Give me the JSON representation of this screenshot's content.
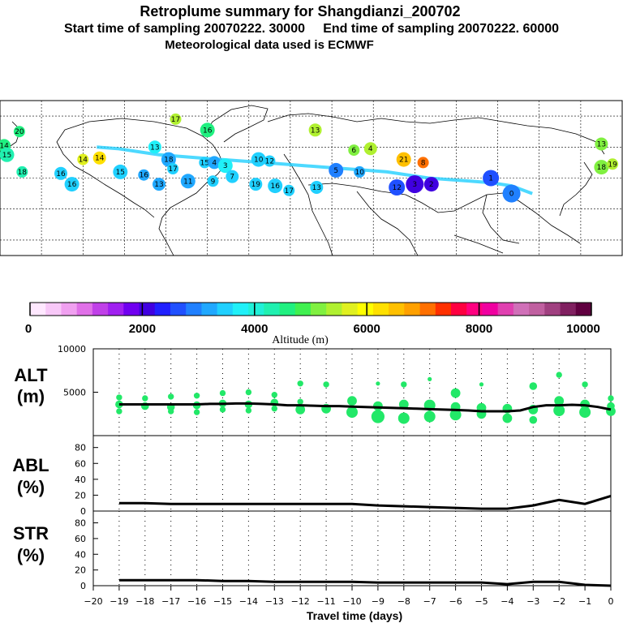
{
  "titles": {
    "line1": "Retroplume summary for Shangdianzi_200702",
    "line2": "Start time of sampling 20070222. 30000     End time of sampling 20070222. 60000",
    "line3": "Meteorological data used is ECMWF"
  },
  "colorbar": {
    "label": "Altitude (m)",
    "ticks": [
      "0",
      "2000",
      "4000",
      "6000",
      "8000",
      "10000"
    ],
    "colors": [
      "#ffe8ff",
      "#f8c8f8",
      "#f0a0f0",
      "#e070e8",
      "#c040e8",
      "#a020f0",
      "#7000f0",
      "#4000e0",
      "#2020ff",
      "#2050ff",
      "#2080ff",
      "#20a8ff",
      "#20d0ff",
      "#20f0f8",
      "#20f0d8",
      "#20f0b0",
      "#20f080",
      "#40f050",
      "#80f040",
      "#b0f030",
      "#e0f020",
      "#ffff00",
      "#ffe000",
      "#ffc000",
      "#ffa000",
      "#ff7000",
      "#ff3000",
      "#ff0040",
      "#ff0080",
      "#f000a0",
      "#e040b0",
      "#d070b8",
      "#c060a0",
      "#a04080",
      "#802060",
      "#600040"
    ]
  },
  "chart_data": [
    {
      "type": "map",
      "title": "Retroplume cluster positions",
      "points": [
        {
          "label": "20",
          "lon": -166,
          "lat": 70,
          "alt": 4500
        },
        {
          "label": "14",
          "lon": -177,
          "lat": 61,
          "alt": 4600
        },
        {
          "label": "15",
          "lon": -175,
          "lat": 55,
          "alt": 4400
        },
        {
          "label": "18",
          "lon": -164,
          "lat": 44,
          "alt": 4300
        },
        {
          "label": "16",
          "lon": -136,
          "lat": 43,
          "alt": 3400
        },
        {
          "label": "16",
          "lon": -128,
          "lat": 36,
          "alt": 3500
        },
        {
          "label": "14",
          "lon": -120,
          "lat": 52,
          "alt": 5800
        },
        {
          "label": "14",
          "lon": -108,
          "lat": 53,
          "alt": 6200
        },
        {
          "label": "15",
          "lon": -93,
          "lat": 44,
          "alt": 3400
        },
        {
          "label": "16",
          "lon": -76,
          "lat": 42,
          "alt": 3300
        },
        {
          "label": "13",
          "lon": -68,
          "lat": 60,
          "alt": 3700
        },
        {
          "label": "18",
          "lon": -58,
          "lat": 52,
          "alt": 3200
        },
        {
          "label": "17",
          "lon": -55,
          "lat": 46,
          "alt": 3400
        },
        {
          "label": "13",
          "lon": -65,
          "lat": 36,
          "alt": 3100
        },
        {
          "label": "11",
          "lon": -44,
          "lat": 38,
          "alt": 3300
        },
        {
          "label": "15",
          "lon": -32,
          "lat": 50,
          "alt": 3600
        },
        {
          "label": "4",
          "lon": -25,
          "lat": 50,
          "alt": 3300
        },
        {
          "label": "3",
          "lon": -17,
          "lat": 48,
          "alt": 3700
        },
        {
          "label": "9",
          "lon": -26,
          "lat": 38,
          "alt": 3500
        },
        {
          "label": "7",
          "lon": -12,
          "lat": 41,
          "alt": 3600
        },
        {
          "label": "10",
          "lon": 7,
          "lat": 52,
          "alt": 3500
        },
        {
          "label": "12",
          "lon": 15,
          "lat": 51,
          "alt": 3600
        },
        {
          "label": "19",
          "lon": 5,
          "lat": 36,
          "alt": 3500
        },
        {
          "label": "16",
          "lon": 19,
          "lat": 35,
          "alt": 3500
        },
        {
          "label": "17",
          "lon": 29,
          "lat": 32,
          "alt": 3400
        },
        {
          "label": "13",
          "lon": 49,
          "lat": 34,
          "alt": 3600
        },
        {
          "label": "5",
          "lon": 63,
          "lat": 45,
          "alt": 3000
        },
        {
          "label": "10",
          "lon": 80,
          "lat": 44,
          "alt": 3200
        },
        {
          "label": "12",
          "lon": 107,
          "lat": 34,
          "alt": 2500
        },
        {
          "label": "3",
          "lon": 120,
          "lat": 36,
          "alt": 2000
        },
        {
          "label": "2",
          "lon": 132,
          "lat": 36,
          "alt": 2200
        },
        {
          "label": "1",
          "lon": 175,
          "lat": 40,
          "alt": 2700
        },
        {
          "label": "0",
          "lon": 190,
          "lat": 30,
          "alt": 2800
        },
        {
          "label": "6",
          "lon": 76,
          "lat": 58,
          "alt": 5200
        },
        {
          "label": "4",
          "lon": 88,
          "lat": 59,
          "alt": 5500
        },
        {
          "label": "21",
          "lon": 112,
          "lat": 52,
          "alt": 6500
        },
        {
          "label": "8",
          "lon": 126,
          "lat": 50,
          "alt": 7200
        },
        {
          "label": "13",
          "lon": 48,
          "lat": 71,
          "alt": 5500
        },
        {
          "label": "16",
          "lon": -30,
          "lat": 71,
          "alt": 4500
        },
        {
          "label": "17",
          "lon": -53,
          "lat": 78,
          "alt": 5300
        },
        {
          "label": "13",
          "lon": 255,
          "lat": 62,
          "alt": 5000
        },
        {
          "label": "18",
          "lon": 255,
          "lat": 47,
          "alt": 5200
        },
        {
          "label": "19",
          "lon": 263,
          "lat": 49,
          "alt": 5500
        }
      ]
    },
    {
      "type": "scatter+line",
      "ylabel_line1": "ALT",
      "ylabel_line2": "(m)",
      "ylim": [
        0,
        10000
      ],
      "yticks": [
        "5000",
        "10000"
      ],
      "xlim": [
        -20,
        0
      ],
      "x": [
        -19,
        -18.5,
        -18,
        -17.5,
        -17,
        -16.5,
        -16,
        -15.5,
        -15,
        -14.5,
        -14,
        -13.5,
        -13,
        -12.5,
        -12,
        -11.5,
        -11,
        -10.5,
        -10,
        -9.5,
        -9,
        -8.5,
        -8,
        -7.5,
        -7,
        -6.5,
        -6,
        -5.5,
        -5,
        -4.5,
        -4,
        -3.5,
        -3,
        -2.5,
        -2,
        -1.5,
        -1,
        -0.5,
        0
      ],
      "median": [
        3600,
        3600,
        3600,
        3600,
        3600,
        3600,
        3600,
        3650,
        3650,
        3700,
        3700,
        3650,
        3600,
        3500,
        3500,
        3450,
        3400,
        3400,
        3350,
        3300,
        3250,
        3200,
        3150,
        3100,
        3050,
        3000,
        2950,
        2900,
        2800,
        2800,
        2800,
        2900,
        3300,
        3500,
        3500,
        3550,
        3500,
        3300,
        3000
      ],
      "clusters": [
        [
          -19,
          3600,
          3
        ],
        [
          -19,
          2800,
          2
        ],
        [
          -19,
          4400,
          2
        ],
        [
          -18,
          3400,
          3
        ],
        [
          -18,
          4300,
          2
        ],
        [
          -17,
          3300,
          3
        ],
        [
          -17,
          4500,
          2
        ],
        [
          -17,
          2800,
          2
        ],
        [
          -16,
          3500,
          3
        ],
        [
          -16,
          4600,
          2
        ],
        [
          -16,
          2700,
          2
        ],
        [
          -15,
          3700,
          3
        ],
        [
          -15,
          4900,
          2
        ],
        [
          -15,
          3000,
          2
        ],
        [
          -14,
          3600,
          3
        ],
        [
          -14,
          5000,
          2
        ],
        [
          -14,
          2900,
          2
        ],
        [
          -13,
          3800,
          3
        ],
        [
          -13,
          4700,
          2
        ],
        [
          -13,
          3100,
          2
        ],
        [
          -12,
          3000,
          4
        ],
        [
          -12,
          6000,
          2
        ],
        [
          -12,
          3900,
          2
        ],
        [
          -11,
          3100,
          4
        ],
        [
          -11,
          5900,
          2
        ],
        [
          -10,
          2700,
          5
        ],
        [
          -10,
          4000,
          4
        ],
        [
          -9,
          2200,
          6
        ],
        [
          -9,
          3400,
          4
        ],
        [
          -9,
          6000,
          1
        ],
        [
          -8,
          2000,
          5
        ],
        [
          -8,
          3600,
          4
        ],
        [
          -8,
          5900,
          2
        ],
        [
          -7,
          2200,
          5
        ],
        [
          -7,
          3500,
          5
        ],
        [
          -7,
          6500,
          1
        ],
        [
          -6,
          2400,
          5
        ],
        [
          -6,
          4900,
          4
        ],
        [
          -6,
          3300,
          4
        ],
        [
          -5,
          2500,
          4
        ],
        [
          -5,
          3200,
          4
        ],
        [
          -5,
          5900,
          1
        ],
        [
          -4,
          2000,
          4
        ],
        [
          -4,
          3100,
          4
        ],
        [
          -3,
          1800,
          3
        ],
        [
          -3,
          3000,
          4
        ],
        [
          -3,
          5700,
          3
        ],
        [
          -2,
          2900,
          5
        ],
        [
          -2,
          7000,
          2
        ],
        [
          -2,
          4000,
          4
        ],
        [
          -1,
          2700,
          5
        ],
        [
          -1,
          3600,
          4
        ],
        [
          -1,
          5900,
          2
        ],
        [
          0,
          2800,
          4
        ],
        [
          0,
          3400,
          3
        ],
        [
          0,
          4300,
          2
        ]
      ]
    },
    {
      "type": "line",
      "ylabel_line1": "ABL",
      "ylabel_line2": "(%)",
      "ylim": [
        0,
        90
      ],
      "yticks": [
        "0",
        "20",
        "40",
        "60",
        "80"
      ],
      "x": [
        -19,
        -18,
        -17,
        -16,
        -15,
        -14,
        -13,
        -12,
        -11,
        -10,
        -9,
        -8,
        -7,
        -6,
        -5,
        -4,
        -3,
        -2,
        -1,
        0
      ],
      "values": [
        10,
        10,
        9,
        9,
        9,
        9,
        9,
        9,
        9,
        9,
        7,
        6,
        5,
        4,
        3,
        3,
        7,
        14,
        9,
        19
      ]
    },
    {
      "type": "line",
      "ylabel_line1": "STR",
      "ylabel_line2": "(%)",
      "ylim": [
        0,
        90
      ],
      "yticks": [
        "0",
        "20",
        "40",
        "60",
        "80"
      ],
      "x": [
        -19,
        -18,
        -17,
        -16,
        -15,
        -14,
        -13,
        -12,
        -11,
        -10,
        -9,
        -8,
        -7,
        -6,
        -5,
        -4,
        -3,
        -2,
        -1,
        0
      ],
      "values": [
        7,
        7,
        7,
        7,
        6,
        6,
        5,
        5,
        5,
        5,
        4,
        4,
        4,
        4,
        4,
        2,
        5,
        5,
        1,
        0
      ]
    },
    {
      "type": "axis",
      "xlabel": "Travel time (days)",
      "xticks": [
        "−20",
        "−19",
        "−18",
        "−17",
        "−16",
        "−15",
        "−14",
        "−13",
        "−12",
        "−11",
        "−10",
        "−9",
        "−8",
        "−7",
        "−6",
        "−5",
        "−4",
        "−3",
        "−2",
        "−1",
        "0"
      ]
    }
  ]
}
